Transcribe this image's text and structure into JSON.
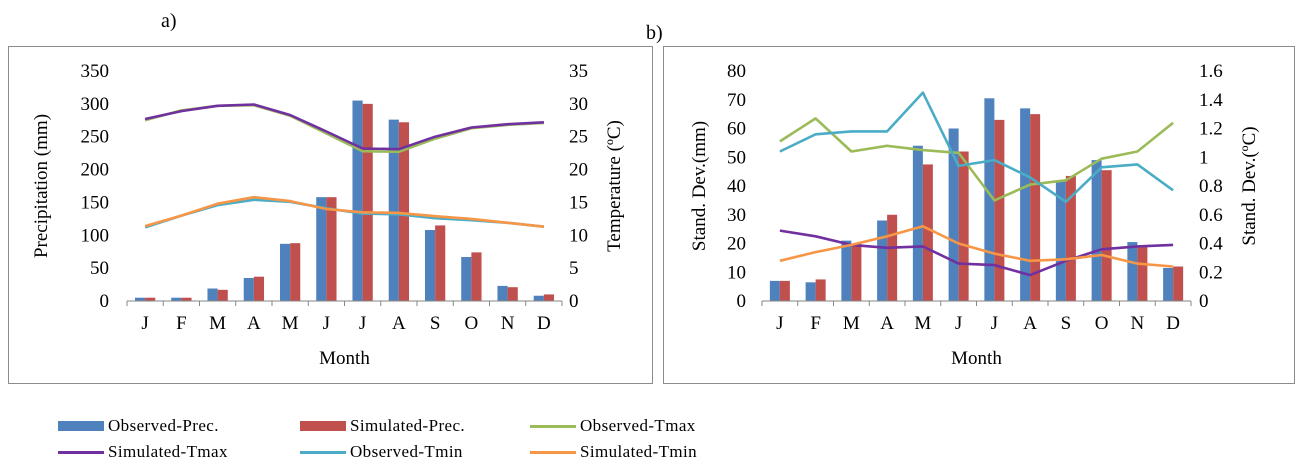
{
  "panel_labels": {
    "a": "a)",
    "b": "b)"
  },
  "chart_data": [
    {
      "id": "a",
      "type": "bar",
      "categories": [
        "J",
        "F",
        "M",
        "A",
        "M",
        "J",
        "J",
        "A",
        "S",
        "O",
        "N",
        "D"
      ],
      "xlabel": "Month",
      "ylabel": "Precipitation (mm)",
      "y2label": "Temperature (ºC)",
      "ylim": [
        0,
        350
      ],
      "yticks": [
        "0",
        "50",
        "100",
        "150",
        "200",
        "250",
        "300",
        "350"
      ],
      "y2lim": [
        0,
        35
      ],
      "y2ticks": [
        "0",
        "5",
        "10",
        "15",
        "20",
        "25",
        "30",
        "35"
      ],
      "bars": [
        {
          "name": "Observed-Prec.",
          "color": "#4f81bd",
          "values": [
            5,
            5,
            19,
            35,
            87,
            158,
            305,
            276,
            108,
            67,
            23,
            8
          ]
        },
        {
          "name": "Simulated-Prec.",
          "color": "#c0504d",
          "values": [
            5,
            5,
            17,
            37,
            88,
            158,
            300,
            272,
            115,
            74,
            21,
            10
          ]
        }
      ],
      "lines": [
        {
          "name": "Observed-Tmax",
          "color": "#9bbb59",
          "values": [
            27.5,
            29.0,
            29.7,
            29.8,
            28.2,
            25.5,
            22.8,
            22.7,
            24.7,
            26.3,
            26.8,
            27.1
          ]
        },
        {
          "name": "Simulated-Tmax",
          "color": "#7030a0",
          "values": [
            27.7,
            28.9,
            29.7,
            29.9,
            28.3,
            25.8,
            23.2,
            23.1,
            25.0,
            26.4,
            26.9,
            27.2
          ]
        },
        {
          "name": "Observed-Tmin",
          "color": "#4bacc6",
          "values": [
            11.2,
            13.0,
            14.6,
            15.4,
            15.1,
            14.1,
            13.3,
            13.2,
            12.6,
            12.3,
            11.9,
            11.3
          ]
        },
        {
          "name": "Simulated-Tmin",
          "color": "#f79646",
          "values": [
            11.4,
            13.0,
            14.8,
            15.8,
            15.2,
            14.0,
            13.5,
            13.4,
            12.9,
            12.5,
            11.9,
            11.3
          ]
        }
      ]
    },
    {
      "id": "b",
      "type": "bar",
      "categories": [
        "J",
        "F",
        "M",
        "A",
        "M",
        "J",
        "J",
        "A",
        "S",
        "O",
        "N",
        "D"
      ],
      "xlabel": "Month",
      "ylabel": "Stand. Dev.(mm)",
      "y2label": "Stand. Dev.(ºC)",
      "ylim": [
        0,
        80
      ],
      "yticks": [
        "0",
        "10",
        "20",
        "30",
        "40",
        "50",
        "60",
        "70",
        "80"
      ],
      "y2lim": [
        0,
        1.6
      ],
      "y2ticks": [
        "0",
        "0.2",
        "0.4",
        "0.6",
        "0.8",
        "1",
        "1.2",
        "1.4",
        "1.6"
      ],
      "bars": [
        {
          "name": "Observed-Prec.",
          "color": "#4f81bd",
          "values": [
            7,
            6.5,
            21,
            28,
            54,
            60,
            70.5,
            67,
            42,
            49,
            20.5,
            11.5
          ]
        },
        {
          "name": "Simulated-Prec.",
          "color": "#c0504d",
          "values": [
            7,
            7.5,
            20,
            30,
            47.5,
            52,
            63,
            65,
            43.5,
            45.5,
            19,
            12
          ]
        }
      ],
      "lines": [
        {
          "name": "Observed-Tmax",
          "color": "#9bbb59",
          "values": [
            1.11,
            1.27,
            1.04,
            1.08,
            1.05,
            1.03,
            0.7,
            0.81,
            0.84,
            0.99,
            1.04,
            1.24
          ]
        },
        {
          "name": "Simulated-Tmax",
          "color": "#7030a0",
          "values": [
            0.49,
            0.45,
            0.39,
            0.37,
            0.38,
            0.26,
            0.25,
            0.18,
            0.28,
            0.36,
            0.38,
            0.39
          ]
        },
        {
          "name": "Observed-Tmin",
          "color": "#4bacc6",
          "values": [
            1.04,
            1.16,
            1.18,
            1.18,
            1.45,
            0.94,
            0.98,
            0.86,
            0.69,
            0.93,
            0.95,
            0.77
          ]
        },
        {
          "name": "Simulated-Tmin",
          "color": "#f79646",
          "values": [
            0.28,
            0.34,
            0.39,
            0.45,
            0.52,
            0.4,
            0.33,
            0.28,
            0.29,
            0.32,
            0.26,
            0.24
          ]
        }
      ]
    }
  ],
  "legend": [
    {
      "label": "Observed-Prec.",
      "kind": "box",
      "color": "#4f81bd"
    },
    {
      "label": "Simulated-Prec.",
      "kind": "box",
      "color": "#c0504d"
    },
    {
      "label": "Observed-Tmax",
      "kind": "line",
      "color": "#9bbb59"
    },
    {
      "label": "Simulated-Tmax",
      "kind": "line",
      "color": "#7030a0"
    },
    {
      "label": "Observed-Tmin",
      "kind": "line",
      "color": "#4bacc6"
    },
    {
      "label": "Simulated-Tmin",
      "kind": "line",
      "color": "#f79646"
    }
  ]
}
